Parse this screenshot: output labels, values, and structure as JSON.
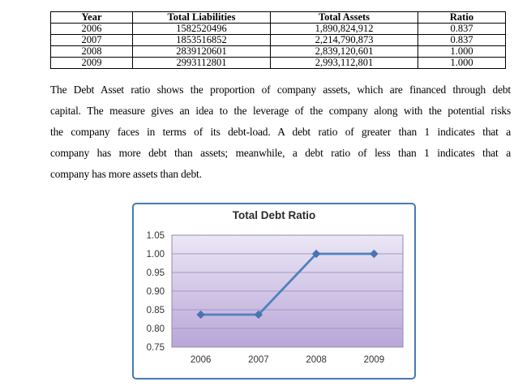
{
  "table": {
    "headers": [
      "Year",
      "Total Liabilities",
      "Total Assets",
      "Ratio"
    ],
    "rows": [
      [
        "2006",
        "1582520496",
        "1,890,824,912",
        "0.837"
      ],
      [
        "2007",
        "1853516852",
        "2,214,790,873",
        "0.837"
      ],
      [
        "2008",
        "2839120601",
        "2,839,120,601",
        "1.000"
      ],
      [
        "2009",
        "2993112801",
        "2,993,112,801",
        "1.000"
      ]
    ]
  },
  "paragraph": {
    "lines": [
      "The Debt Asset ratio shows the proportion of company assets, which are financed through debt",
      "capital. The measure gives an idea to the leverage of the company along with the potential risks",
      "the company faces in terms of its debt-load. A debt ratio of greater than 1 indicates that a",
      "company has more debt than assets; meanwhile, a debt ratio of less than 1 indicates that a",
      "company has more assets than debt."
    ]
  },
  "chart_data": {
    "type": "line",
    "title": "Total Debt Ratio",
    "categories": [
      "2006",
      "2007",
      "2008",
      "2009"
    ],
    "series": [
      {
        "name": "Total Debt Ratio",
        "values": [
          0.837,
          0.837,
          1.0,
          1.0
        ]
      }
    ],
    "ylim": [
      0.75,
      1.05
    ],
    "ytick_step": 0.05,
    "ytick_labels": [
      "0.75",
      "0.80",
      "0.85",
      "0.90",
      "0.95",
      "1.00",
      "1.05"
    ],
    "grid": true,
    "legend": "none",
    "colors": {
      "line": "#4f81bd",
      "marker": "#4a73b2",
      "frame": "#4779b4",
      "plot_gradient_top": "#ebe7f5",
      "plot_gradient_bottom": "#b9a6d8",
      "gridline": "#a596c6",
      "plot_border": "#9488ae",
      "axis_text": "#333333",
      "title_text": "#2b2b2b"
    }
  }
}
